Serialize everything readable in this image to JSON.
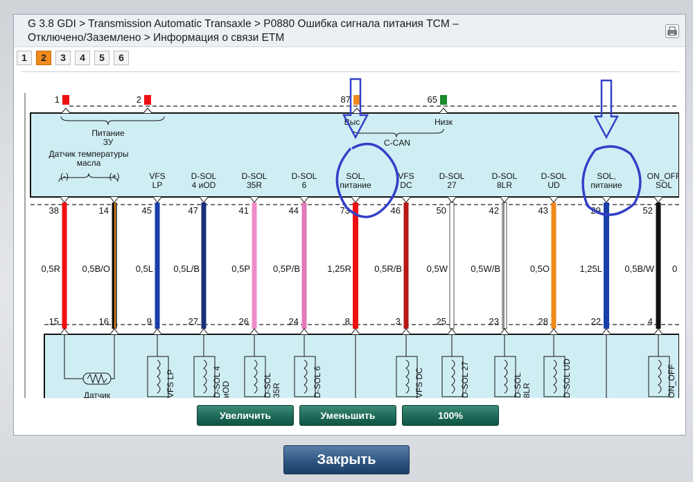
{
  "breadcrumb": {
    "line1": "G 3.8 GDI > Transmission Automatic Transaxle > P0880 Ошибка сигнала питания TCM –",
    "line2": "Отключено/Заземлено > Информация о связи ETM"
  },
  "page_tabs": [
    "1",
    "2",
    "3",
    "4",
    "5",
    "6"
  ],
  "active_page": "2",
  "diagram": {
    "top_pins": [
      {
        "num": "1",
        "color": "#ee1111"
      },
      {
        "num": "2",
        "color": "#ee1111"
      },
      {
        "num": "87",
        "color": "#f08a1c"
      },
      {
        "num": "65",
        "color": "#1a8a2a"
      }
    ],
    "top_labels": {
      "power": "Питание\nЗУ",
      "high": "Выс",
      "low": "Низк",
      "ccan": "C-CAN"
    },
    "sensor_label": "Датчик температуры\nмасла",
    "sensor_bottom_label": "Датчик\nтемпературы",
    "wires": [
      {
        "label": "(-)",
        "top": "38",
        "bottom": "15",
        "spec": "0,5R",
        "color": "#ee1111"
      },
      {
        "label": "(+)",
        "top": "14",
        "bottom": "16",
        "spec": "0,5B/O",
        "color": "#111111",
        "stripe": "#f08a1c"
      },
      {
        "label": "VFS\nLP",
        "top": "45",
        "bottom": "9",
        "spec": "0,5L",
        "color": "#1a3fa8"
      },
      {
        "label": "D-SOL\n4 иOD",
        "top": "47",
        "bottom": "27",
        "spec": "0,5L/B",
        "color": "#1a2f7a"
      },
      {
        "label": "D-SOL\n35R",
        "top": "41",
        "bottom": "26",
        "spec": "0,5P",
        "color": "#ee8cc8"
      },
      {
        "label": "D-SOL\n6",
        "top": "44",
        "bottom": "24",
        "spec": "0,5P/B",
        "color": "#e07ab8"
      },
      {
        "label": "SOL,\nпитание",
        "top": "73",
        "bottom": "8",
        "spec": "1,25R",
        "color": "#ee1111"
      },
      {
        "label": "VFS\nDC",
        "top": "46",
        "bottom": "3",
        "spec": "0,5R/B",
        "color": "#b81818"
      },
      {
        "label": "D-SOL\n27",
        "top": "50",
        "bottom": "25",
        "spec": "0,5W",
        "color": "#ffffff"
      },
      {
        "label": "D-SOL\n8LR",
        "top": "42",
        "bottom": "23",
        "spec": "0,5W/B",
        "color": "#ffffff"
      },
      {
        "label": "D-SOL\nUD",
        "top": "43",
        "bottom": "28",
        "spec": "0,5O",
        "color": "#f08a1c"
      },
      {
        "label": "SOL,\nпитание",
        "top": "29",
        "bottom": "22",
        "spec": "1,25L",
        "color": "#1a3fa8"
      },
      {
        "label": "ON_OFF\nSOL",
        "top": "52",
        "bottom": "4",
        "spec": "0,5B/W",
        "color": "#111111"
      }
    ],
    "coils": [
      "VFS LP",
      "D-SOL 4\nиOD",
      "D-SOL\n35R",
      "D-SOL 6",
      "VFS DC",
      "D-SOL 27",
      "D-SOL\n8LR",
      "D-SOL UD",
      "ON_OFF"
    ],
    "cut_spec": "0",
    "annotation_color": "#3340c8"
  },
  "buttons": {
    "zoom_in": "Увеличить",
    "zoom_out": "Уменьшить",
    "reset": "100%",
    "close": "Закрыть"
  }
}
